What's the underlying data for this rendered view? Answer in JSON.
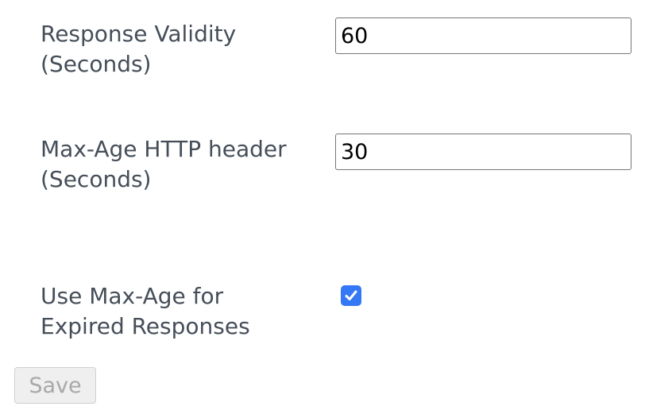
{
  "form": {
    "response_validity": {
      "label": "Response Validity (Seconds)",
      "value": "60"
    },
    "max_age": {
      "label": "Max-Age HTTP header (Seconds)",
      "value": "30"
    },
    "use_max_age": {
      "label": "Use Max-Age for Expired Responses",
      "checked": true
    },
    "save_label": "Save"
  },
  "colors": {
    "checkbox": "#3478f6",
    "text": "#454e59"
  }
}
